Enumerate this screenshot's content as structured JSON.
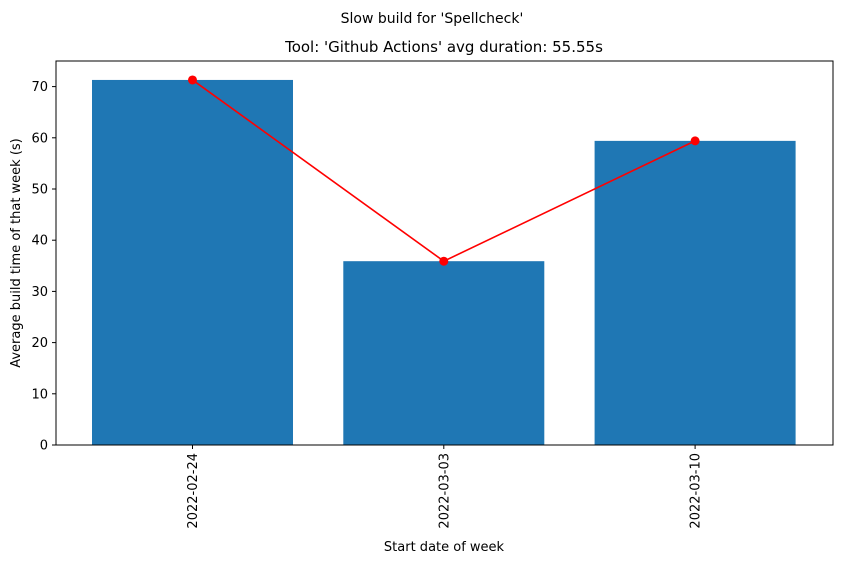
{
  "chart_data": {
    "type": "bar",
    "suptitle": "Slow build for 'Spellcheck'",
    "title": "Tool: 'Github Actions' avg duration: 55.55s",
    "xlabel": "Start date of week",
    "ylabel": "Average build time of that week (s)",
    "categories": [
      "2022-02-24",
      "2022-03-03",
      "2022-03-10"
    ],
    "values": [
      71.3,
      35.9,
      59.4
    ],
    "line_overlay": {
      "values": [
        71.3,
        35.9,
        59.4
      ],
      "color": "#ff0000",
      "marker": "circle"
    },
    "ylim": [
      0,
      75
    ],
    "yticks": [
      0,
      10,
      20,
      30,
      40,
      50,
      60,
      70
    ],
    "bar_color": "#1f77b4",
    "grid": false,
    "legend": "none",
    "xtick_rotation": "vertical"
  }
}
